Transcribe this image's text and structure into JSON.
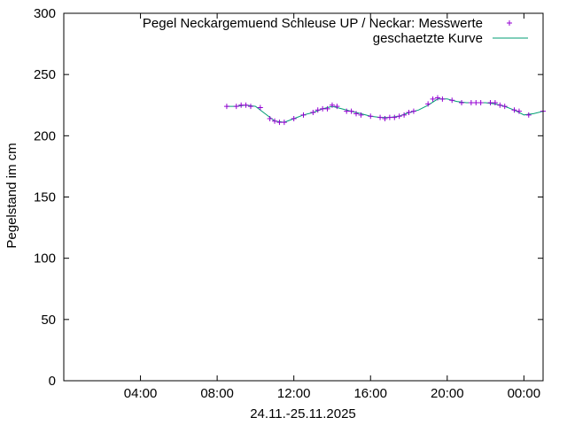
{
  "chart_data": {
    "type": "line",
    "xlabel": "24.11.-25.11.2025",
    "ylabel": "Pegelstand im cm",
    "ylim": [
      0,
      300
    ],
    "yticks": [
      0,
      50,
      100,
      150,
      200,
      250,
      300
    ],
    "xlim_hours": [
      0,
      25
    ],
    "xticks": [
      {
        "label": "04:00",
        "hour": 4
      },
      {
        "label": "08:00",
        "hour": 8
      },
      {
        "label": "12:00",
        "hour": 12
      },
      {
        "label": "16:00",
        "hour": 16
      },
      {
        "label": "20:00",
        "hour": 20
      },
      {
        "label": "00:00",
        "hour": 24
      }
    ],
    "grid": false,
    "legend_position": "top-right",
    "series": [
      {
        "name": "Pegel Neckargemuend Schleuse UP / Neckar: Messwerte",
        "style": "points",
        "marker": "+",
        "color": "#9400d3",
        "x": [
          8.5,
          9.0,
          9.25,
          9.5,
          9.75,
          10.25,
          10.75,
          11.0,
          11.25,
          11.5,
          12.0,
          12.5,
          13.0,
          13.25,
          13.5,
          13.75,
          14.0,
          14.25,
          14.75,
          15.0,
          15.25,
          15.5,
          16.0,
          16.5,
          16.75,
          17.0,
          17.25,
          17.5,
          17.75,
          18.0,
          18.25,
          19.0,
          19.25,
          19.5,
          19.75,
          20.25,
          20.75,
          21.25,
          21.5,
          21.75,
          22.25,
          22.5,
          22.75,
          23.0,
          23.5,
          23.75,
          24.25,
          25.0
        ],
        "y": [
          224,
          224,
          225,
          225,
          224,
          223,
          214,
          212,
          211,
          211,
          214,
          217,
          219,
          221,
          222,
          222,
          225,
          224,
          220,
          220,
          218,
          217,
          216,
          215,
          214,
          215,
          215,
          216,
          217,
          219,
          220,
          226,
          230,
          231,
          230,
          229,
          227,
          227,
          227,
          227,
          227,
          227,
          225,
          224,
          221,
          220,
          217,
          220
        ]
      },
      {
        "name": "geschaetzte Kurve",
        "style": "line",
        "color": "#009e73",
        "x": [
          8.5,
          9.0,
          9.5,
          10.0,
          10.5,
          11.0,
          11.5,
          12.0,
          12.5,
          13.0,
          13.5,
          14.0,
          14.5,
          15.0,
          15.5,
          16.0,
          16.5,
          17.0,
          17.5,
          18.0,
          18.5,
          19.0,
          19.5,
          20.0,
          20.5,
          21.0,
          21.5,
          22.0,
          22.5,
          23.0,
          23.5,
          24.0,
          24.5,
          25.0
        ],
        "y": [
          224,
          224,
          225,
          224,
          218,
          212,
          211,
          214,
          217,
          219,
          222,
          224,
          222,
          220,
          218,
          216,
          215,
          215,
          216,
          219,
          221,
          225,
          230,
          230,
          228,
          227,
          227,
          227,
          226,
          224,
          221,
          217,
          218,
          220
        ]
      }
    ]
  }
}
